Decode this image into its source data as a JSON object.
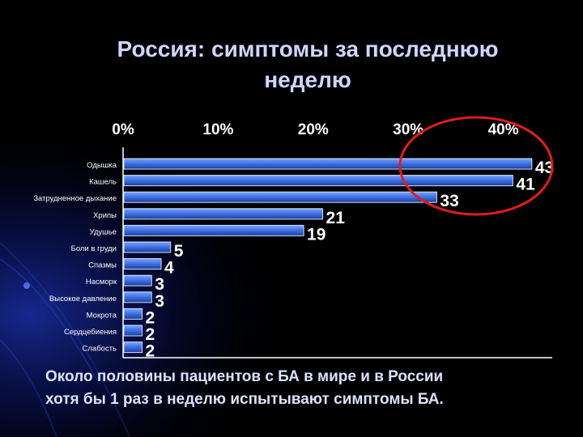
{
  "slide": {
    "title_line1": "Россия: симптомы за последнюю",
    "title_line2": "неделю",
    "footer_line1": "Около половины пациентов с БА в мире и в России",
    "footer_line2": "хотя бы 1 раз в неделю испытывают симптомы БА."
  },
  "colors": {
    "background": "#000000",
    "title": "#cfd6ff",
    "bar": "#3d6fe0",
    "bar_light": "#7aa5ff",
    "value_text": "#ffffff",
    "highlight_ellipse": "#e21b1b"
  },
  "chart_data": {
    "type": "bar",
    "orientation": "horizontal",
    "title": "",
    "xlabel": "",
    "ylabel": "",
    "categories": [
      "Одышка",
      "Кашель",
      "Затрудненное дыхание",
      "Хрипы",
      "Удушье",
      "Боли в груди",
      "Спазмы",
      "Насморк",
      "Высокое давление",
      "Мокрота",
      "Сердцебиения",
      "Слабость"
    ],
    "values": [
      43,
      41,
      33,
      21,
      19,
      5,
      4,
      3,
      3,
      2,
      2,
      2
    ],
    "value_labels": [
      "43",
      "41",
      "33",
      "21",
      "19",
      "5",
      "4",
      "3",
      "3",
      "2",
      "2",
      "2"
    ],
    "x_ticks": [
      "0%",
      "10%",
      "20%",
      "30%",
      "40%"
    ],
    "x_tick_values": [
      0,
      10,
      20,
      30,
      40
    ],
    "xlim": [
      0,
      45
    ],
    "axis_position": "top",
    "grid": false,
    "highlight": "ellipse around the top three bars"
  }
}
